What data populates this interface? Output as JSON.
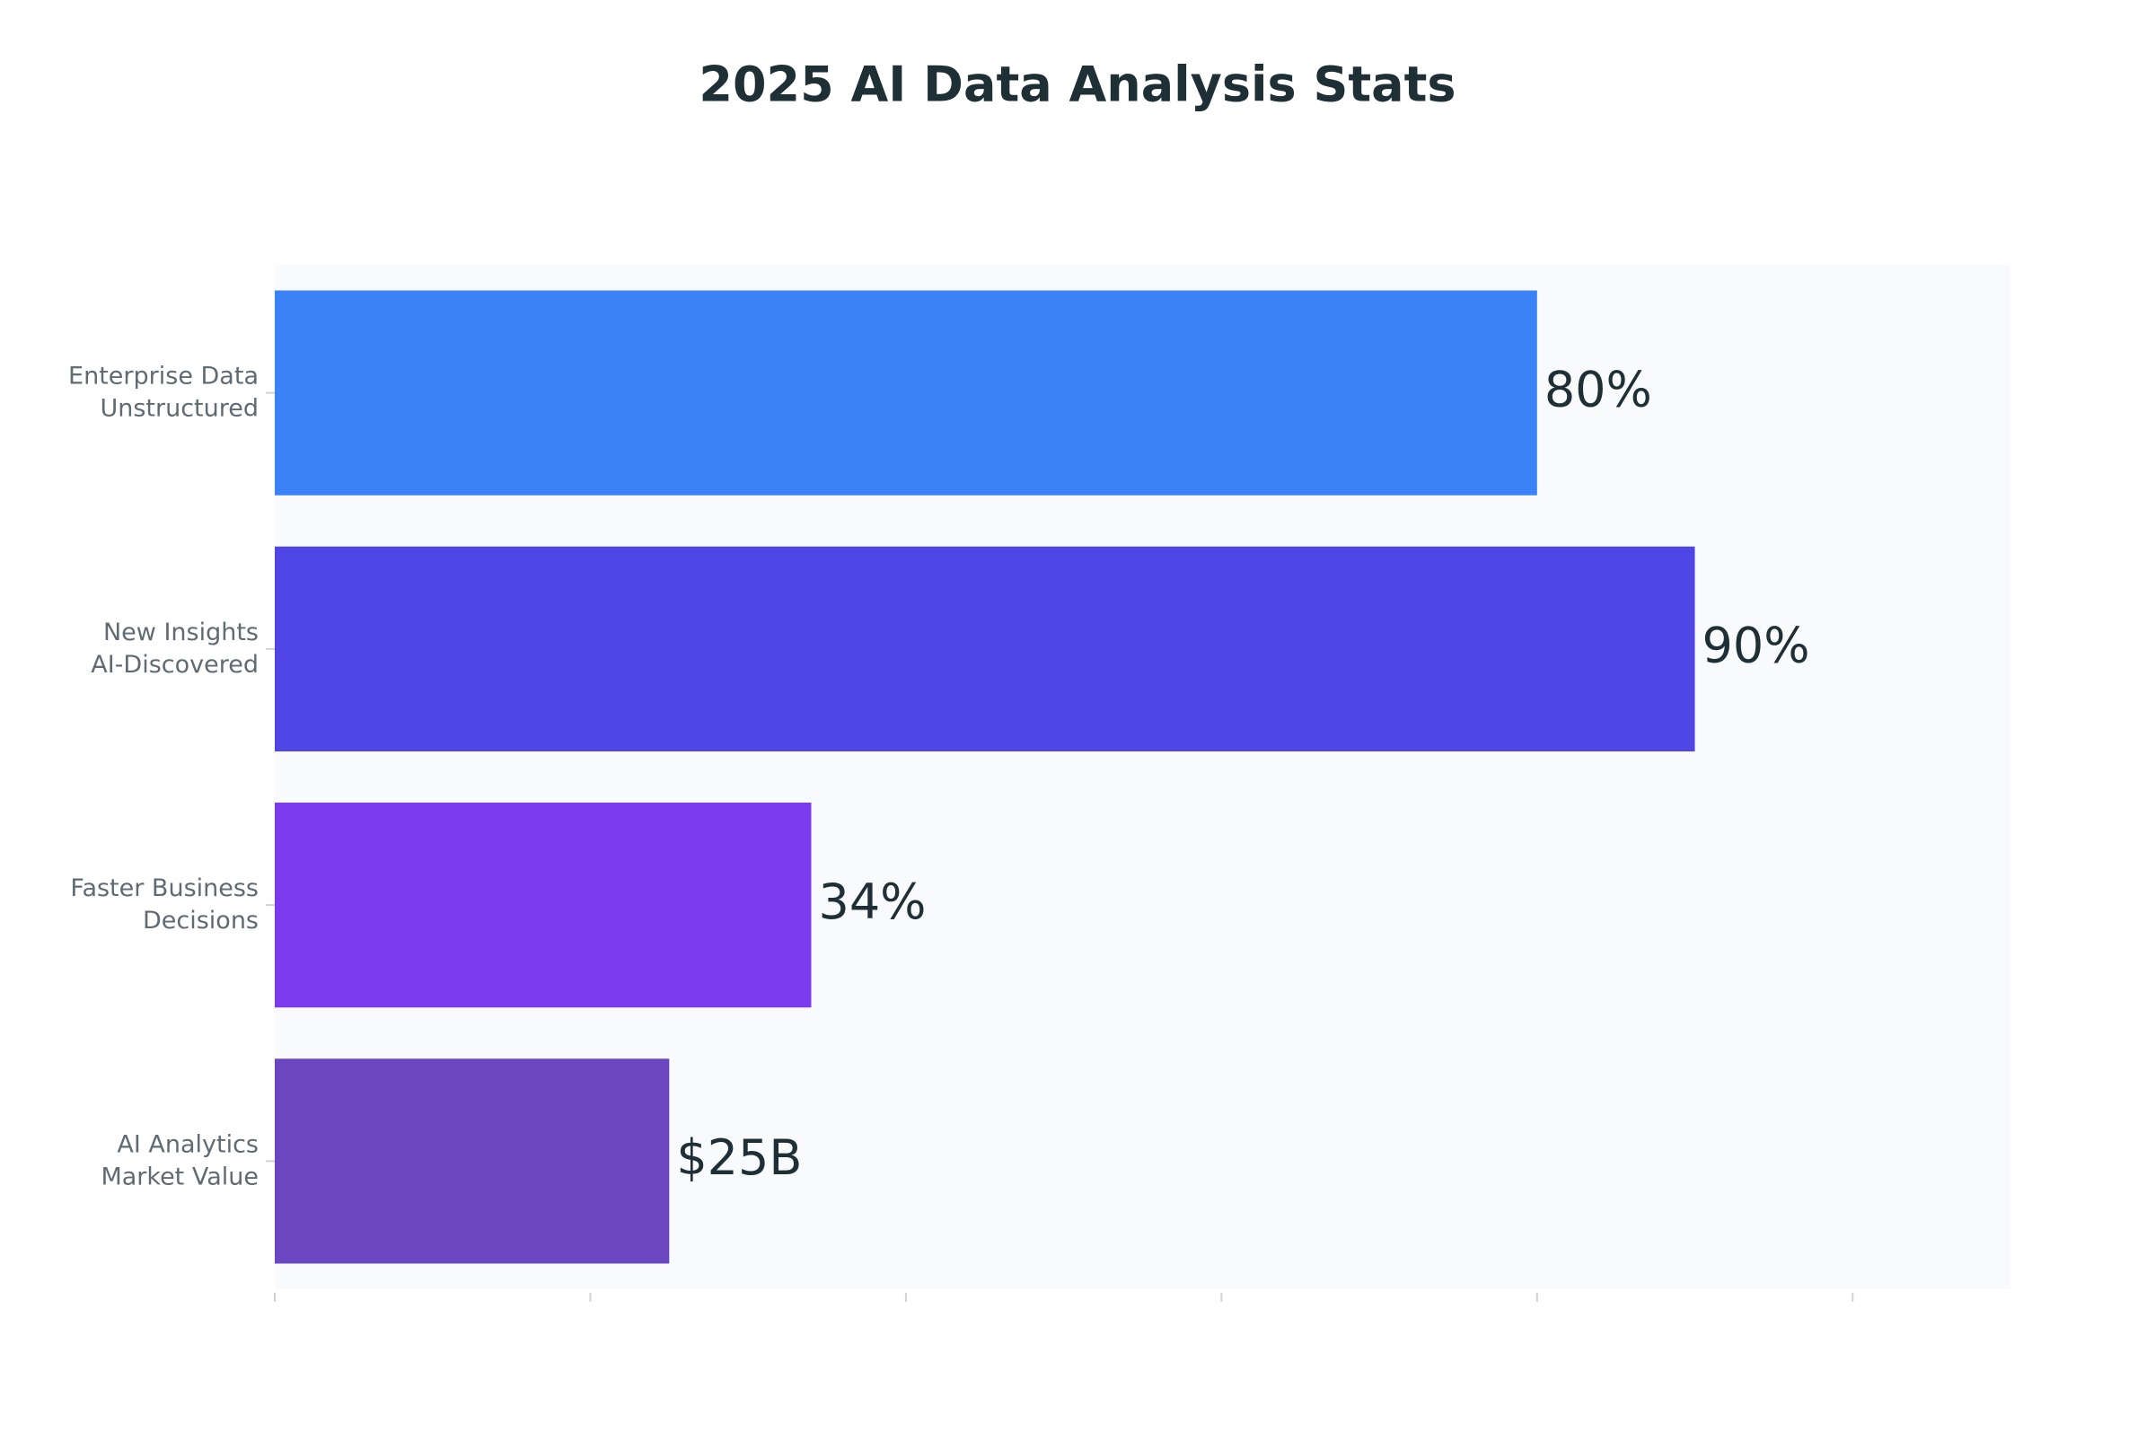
{
  "chart_data": {
    "type": "hbar",
    "title": "2025 AI Data Analysis Stats",
    "categories": [
      [
        "Enterprise Data",
        "Unstructured"
      ],
      [
        "New Insights",
        "AI-Discovered"
      ],
      [
        "Faster Business",
        "Decisions"
      ],
      [
        "AI Analytics",
        "Market Value"
      ]
    ],
    "values": [
      80,
      90,
      34,
      25
    ],
    "value_labels": [
      "80%",
      "90%",
      "34%",
      "$25B"
    ],
    "colors": [
      "#3b82f6",
      "#4f46e5",
      "#7c3aed",
      "#6b46c1"
    ],
    "xlim": [
      0,
      110
    ],
    "xticks": [
      0,
      20,
      40,
      60,
      80,
      100
    ],
    "grid": false
  }
}
